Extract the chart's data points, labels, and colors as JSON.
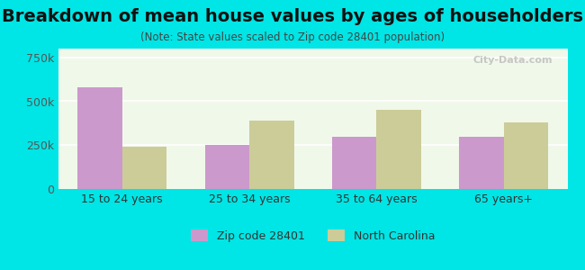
{
  "title": "Breakdown of mean house values by ages of householders",
  "subtitle": "(Note: State values scaled to Zip code 28401 population)",
  "categories": [
    "15 to 24 years",
    "25 to 34 years",
    "35 to 64 years",
    "65 years+"
  ],
  "zip_values": [
    580000,
    250000,
    300000,
    295000
  ],
  "nc_values": [
    240000,
    390000,
    450000,
    380000
  ],
  "zip_color": "#cc99cc",
  "nc_color": "#cccc99",
  "background_color": "#00e5e5",
  "plot_bg_color": "#f0f8ea",
  "ylim": [
    0,
    800000
  ],
  "yticks": [
    0,
    250000,
    500000,
    750000
  ],
  "ytick_labels": [
    "0",
    "250k",
    "500k",
    "750k"
  ],
  "legend_zip": "Zip code 28401",
  "legend_nc": "North Carolina",
  "title_fontsize": 14,
  "subtitle_fontsize": 8.5,
  "bar_width": 0.35,
  "watermark": "City-Data.com"
}
